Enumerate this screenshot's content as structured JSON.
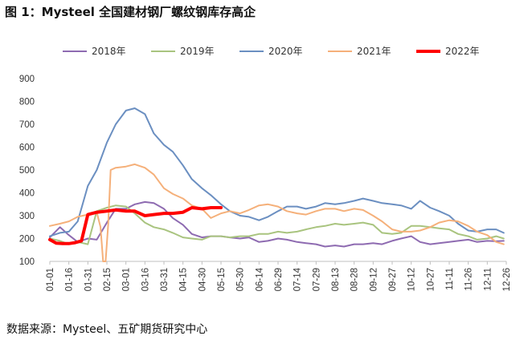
{
  "title": "图 1：Mysteel 全国建材钢厂螺纹钢库存高企",
  "source": "数据来源：Mysteel、五矿期货研究中心",
  "chart_data": {
    "type": "line",
    "title": "图 1：Mysteel 全国建材钢厂螺纹钢库存高企",
    "xlabel": "",
    "ylabel": "",
    "ylim": [
      100,
      900
    ],
    "yticks": [
      100,
      200,
      300,
      400,
      500,
      600,
      700,
      800,
      900
    ],
    "grid": false,
    "legend_position": "top",
    "x_tick_labels": [
      "01-01",
      "01-16",
      "01-31",
      "02-15",
      "03-01",
      "03-16",
      "03-31",
      "04-15",
      "04-30",
      "05-15",
      "05-30",
      "06-14",
      "06-29",
      "07-14",
      "07-29",
      "08-13",
      "08-28",
      "09-12",
      "09-27",
      "10-12",
      "10-27",
      "11-11",
      "11-26",
      "12-11",
      "12-26"
    ],
    "x_range": [
      0,
      360
    ],
    "series": [
      {
        "name": "2018年",
        "color": "#8e6bb1",
        "width": 2,
        "x": [
          0,
          8,
          15,
          22,
          30,
          37,
          45,
          52,
          60,
          67,
          75,
          82,
          90,
          97,
          105,
          112,
          120,
          127,
          135,
          142,
          150,
          157,
          165,
          172,
          180,
          187,
          195,
          202,
          210,
          217,
          225,
          232,
          240,
          247,
          255,
          262,
          270,
          277,
          285,
          292,
          300,
          307,
          315,
          322,
          330,
          337,
          345,
          352,
          358
        ],
        "y": [
          205,
          250,
          215,
          185,
          200,
          195,
          270,
          330,
          330,
          350,
          360,
          355,
          330,
          290,
          260,
          220,
          205,
          210,
          210,
          205,
          200,
          205,
          185,
          190,
          200,
          195,
          185,
          180,
          175,
          165,
          170,
          165,
          175,
          175,
          180,
          175,
          190,
          200,
          210,
          185,
          175,
          180,
          185,
          190,
          195,
          185,
          190,
          188,
          190
        ]
      },
      {
        "name": "2019年",
        "color": "#a9c47f",
        "width": 2,
        "x": [
          0,
          8,
          15,
          22,
          30,
          37,
          45,
          52,
          60,
          67,
          75,
          82,
          90,
          97,
          105,
          112,
          120,
          127,
          135,
          142,
          150,
          157,
          165,
          172,
          180,
          187,
          195,
          202,
          210,
          217,
          225,
          232,
          240,
          247,
          255,
          262,
          270,
          277,
          285,
          292,
          300,
          307,
          315,
          322,
          330,
          337,
          345,
          352,
          358
        ],
        "y": [
          200,
          190,
          175,
          185,
          175,
          320,
          335,
          345,
          340,
          310,
          270,
          250,
          240,
          225,
          205,
          200,
          195,
          210,
          210,
          205,
          210,
          210,
          220,
          220,
          230,
          225,
          230,
          240,
          250,
          255,
          265,
          260,
          265,
          270,
          260,
          225,
          220,
          225,
          255,
          255,
          250,
          245,
          240,
          220,
          210,
          195,
          200,
          210,
          200
        ]
      },
      {
        "name": "2020年",
        "color": "#6b8fc1",
        "width": 2,
        "x": [
          0,
          8,
          15,
          22,
          30,
          37,
          45,
          52,
          60,
          67,
          75,
          82,
          90,
          97,
          105,
          112,
          120,
          127,
          135,
          142,
          150,
          157,
          165,
          172,
          180,
          187,
          195,
          202,
          210,
          217,
          225,
          232,
          240,
          247,
          255,
          262,
          270,
          277,
          285,
          292,
          300,
          307,
          315,
          322,
          330,
          337,
          345,
          352,
          358
        ],
        "y": [
          210,
          225,
          230,
          275,
          430,
          500,
          620,
          700,
          760,
          770,
          745,
          660,
          610,
          580,
          520,
          460,
          420,
          390,
          350,
          320,
          300,
          295,
          280,
          295,
          320,
          340,
          340,
          330,
          340,
          355,
          350,
          355,
          365,
          375,
          365,
          355,
          350,
          345,
          330,
          365,
          335,
          320,
          300,
          265,
          235,
          230,
          240,
          240,
          225
        ]
      },
      {
        "name": "2021年",
        "color": "#f5b07a",
        "width": 2,
        "x": [
          0,
          8,
          15,
          22,
          30,
          37,
          40,
          42,
          44,
          46,
          48,
          52,
          60,
          67,
          75,
          82,
          90,
          97,
          105,
          112,
          120,
          127,
          135,
          142,
          150,
          157,
          165,
          172,
          180,
          187,
          195,
          202,
          210,
          217,
          225,
          232,
          240,
          247,
          255,
          262,
          270,
          277,
          285,
          292,
          300,
          307,
          315,
          322,
          330,
          337,
          345,
          352,
          358
        ],
        "y": [
          255,
          265,
          275,
          295,
          305,
          315,
          250,
          100,
          100,
          260,
          500,
          510,
          515,
          525,
          510,
          480,
          420,
          395,
          375,
          345,
          330,
          290,
          310,
          320,
          310,
          325,
          345,
          350,
          340,
          320,
          310,
          305,
          320,
          330,
          330,
          320,
          330,
          325,
          300,
          275,
          240,
          230,
          230,
          235,
          250,
          270,
          280,
          275,
          255,
          230,
          215,
          185,
          175
        ]
      },
      {
        "name": "2022年",
        "color": "#ff0000",
        "width": 4,
        "x": [
          0,
          5,
          10,
          15,
          20,
          25,
          30,
          37,
          45,
          52,
          60,
          67,
          75,
          82,
          90,
          97,
          105,
          112,
          120,
          127,
          135
        ],
        "y": [
          195,
          180,
          178,
          178,
          182,
          190,
          305,
          315,
          320,
          325,
          320,
          320,
          300,
          305,
          310,
          310,
          315,
          335,
          330,
          335,
          335
        ]
      }
    ]
  }
}
